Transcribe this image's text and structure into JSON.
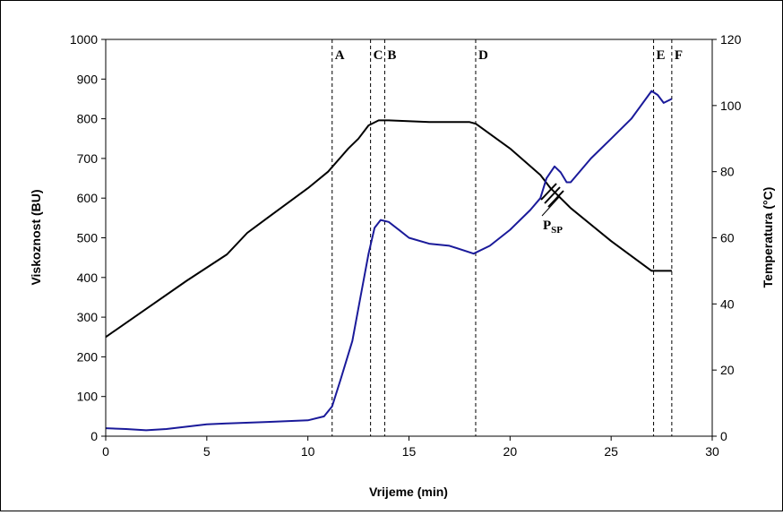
{
  "chart_data": {
    "type": "line",
    "xlabel": "Vrijeme (min)",
    "ylabel_left": "Viskoznost (BU)",
    "ylabel_right": "Temperatura (°C)",
    "xlim": [
      0,
      30
    ],
    "ylim_left": [
      0,
      1000
    ],
    "ylim_right": [
      0,
      120
    ],
    "x_ticks": [
      "0",
      "5",
      "10",
      "15",
      "20",
      "25",
      "30"
    ],
    "y_ticks_left": [
      "0",
      "100",
      "200",
      "300",
      "400",
      "500",
      "600",
      "700",
      "800",
      "900",
      "1000"
    ],
    "y_ticks_right": [
      "0",
      "20",
      "40",
      "60",
      "80",
      "100",
      "120"
    ],
    "grid": false,
    "series": [
      {
        "color": "#000000",
        "axis": "right",
        "x": [
          0,
          2,
          4,
          6,
          7,
          8,
          10,
          11,
          12,
          12.5,
          13,
          13.5,
          14,
          16,
          18,
          18.3,
          20,
          21.5,
          22,
          23,
          25,
          27,
          27.5,
          28
        ],
        "y": [
          30,
          38.5,
          47,
          55,
          61.5,
          66,
          75,
          80,
          87,
          90,
          94,
          95.5,
          95.5,
          95,
          95,
          94.5,
          87,
          79,
          75,
          69,
          59,
          50,
          50,
          50
        ]
      },
      {
        "color": "#1a1a9a",
        "axis": "left",
        "x": [
          0,
          1,
          2,
          3,
          4,
          5,
          6,
          8,
          10,
          10.8,
          11.2,
          11.6,
          12.2,
          12.6,
          13,
          13.3,
          13.6,
          14,
          14.5,
          15,
          16,
          17,
          18.2,
          19,
          20,
          21,
          21.5,
          21.8,
          22.2,
          22.5,
          22.8,
          23,
          24,
          25,
          26,
          27,
          27.3,
          27.6,
          28
        ],
        "y": [
          20,
          18,
          15,
          18,
          24,
          30,
          32,
          36,
          40,
          50,
          75,
          140,
          240,
          350,
          460,
          525,
          545,
          540,
          520,
          500,
          485,
          480,
          460,
          480,
          520,
          570,
          600,
          650,
          680,
          665,
          640,
          640,
          700,
          750,
          800,
          870,
          860,
          840,
          850
        ]
      }
    ],
    "vlines": [
      {
        "x": 11.2,
        "label": "A"
      },
      {
        "x": 13.1,
        "label": "C"
      },
      {
        "x": 13.8,
        "label": "B"
      },
      {
        "x": 18.3,
        "label": "D"
      },
      {
        "x": 27.1,
        "label": "E"
      },
      {
        "x": 28.0,
        "label": "F"
      }
    ],
    "annotation": {
      "label": "P",
      "subscript": "SP"
    }
  }
}
